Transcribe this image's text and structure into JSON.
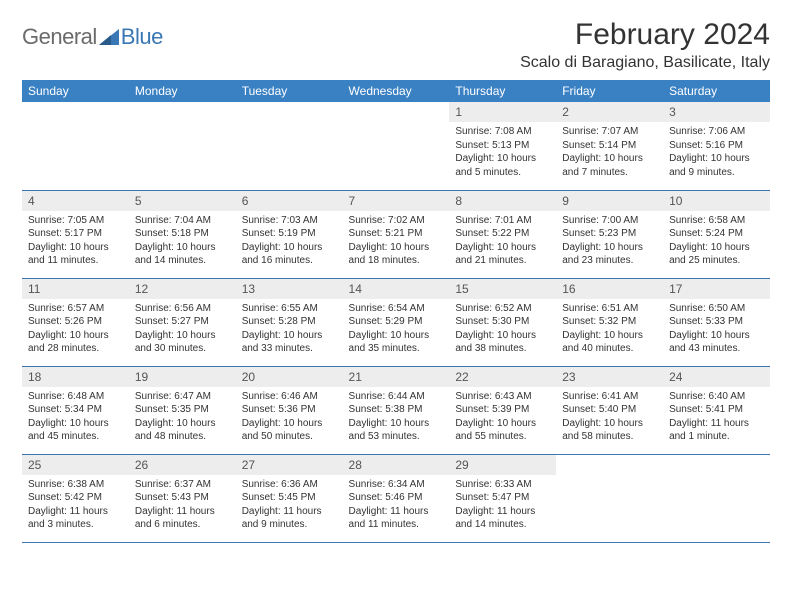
{
  "brand": {
    "general": "General",
    "blue": "Blue"
  },
  "title": "February 2024",
  "location": "Scalo di Baragiano, Basilicate, Italy",
  "colors": {
    "header_bg": "#3a81c4",
    "header_text": "#ffffff",
    "daynum_bg": "#ededed",
    "daynum_text": "#555555",
    "body_text": "#333333",
    "rule": "#3a78b5",
    "logo_gray": "#6b6b6b",
    "logo_blue": "#3a78b5"
  },
  "typography": {
    "title_fontsize": 30,
    "location_fontsize": 16,
    "header_fontsize": 12,
    "daynum_fontsize": 12,
    "cell_fontsize": 10
  },
  "weekdays": [
    "Sunday",
    "Monday",
    "Tuesday",
    "Wednesday",
    "Thursday",
    "Friday",
    "Saturday"
  ],
  "layout": {
    "first_weekday_index": 4,
    "days_in_month": 29
  },
  "days": {
    "1": {
      "sunrise": "7:08 AM",
      "sunset": "5:13 PM",
      "daylight": "10 hours and 5 minutes."
    },
    "2": {
      "sunrise": "7:07 AM",
      "sunset": "5:14 PM",
      "daylight": "10 hours and 7 minutes."
    },
    "3": {
      "sunrise": "7:06 AM",
      "sunset": "5:16 PM",
      "daylight": "10 hours and 9 minutes."
    },
    "4": {
      "sunrise": "7:05 AM",
      "sunset": "5:17 PM",
      "daylight": "10 hours and 11 minutes."
    },
    "5": {
      "sunrise": "7:04 AM",
      "sunset": "5:18 PM",
      "daylight": "10 hours and 14 minutes."
    },
    "6": {
      "sunrise": "7:03 AM",
      "sunset": "5:19 PM",
      "daylight": "10 hours and 16 minutes."
    },
    "7": {
      "sunrise": "7:02 AM",
      "sunset": "5:21 PM",
      "daylight": "10 hours and 18 minutes."
    },
    "8": {
      "sunrise": "7:01 AM",
      "sunset": "5:22 PM",
      "daylight": "10 hours and 21 minutes."
    },
    "9": {
      "sunrise": "7:00 AM",
      "sunset": "5:23 PM",
      "daylight": "10 hours and 23 minutes."
    },
    "10": {
      "sunrise": "6:58 AM",
      "sunset": "5:24 PM",
      "daylight": "10 hours and 25 minutes."
    },
    "11": {
      "sunrise": "6:57 AM",
      "sunset": "5:26 PM",
      "daylight": "10 hours and 28 minutes."
    },
    "12": {
      "sunrise": "6:56 AM",
      "sunset": "5:27 PM",
      "daylight": "10 hours and 30 minutes."
    },
    "13": {
      "sunrise": "6:55 AM",
      "sunset": "5:28 PM",
      "daylight": "10 hours and 33 minutes."
    },
    "14": {
      "sunrise": "6:54 AM",
      "sunset": "5:29 PM",
      "daylight": "10 hours and 35 minutes."
    },
    "15": {
      "sunrise": "6:52 AM",
      "sunset": "5:30 PM",
      "daylight": "10 hours and 38 minutes."
    },
    "16": {
      "sunrise": "6:51 AM",
      "sunset": "5:32 PM",
      "daylight": "10 hours and 40 minutes."
    },
    "17": {
      "sunrise": "6:50 AM",
      "sunset": "5:33 PM",
      "daylight": "10 hours and 43 minutes."
    },
    "18": {
      "sunrise": "6:48 AM",
      "sunset": "5:34 PM",
      "daylight": "10 hours and 45 minutes."
    },
    "19": {
      "sunrise": "6:47 AM",
      "sunset": "5:35 PM",
      "daylight": "10 hours and 48 minutes."
    },
    "20": {
      "sunrise": "6:46 AM",
      "sunset": "5:36 PM",
      "daylight": "10 hours and 50 minutes."
    },
    "21": {
      "sunrise": "6:44 AM",
      "sunset": "5:38 PM",
      "daylight": "10 hours and 53 minutes."
    },
    "22": {
      "sunrise": "6:43 AM",
      "sunset": "5:39 PM",
      "daylight": "10 hours and 55 minutes."
    },
    "23": {
      "sunrise": "6:41 AM",
      "sunset": "5:40 PM",
      "daylight": "10 hours and 58 minutes."
    },
    "24": {
      "sunrise": "6:40 AM",
      "sunset": "5:41 PM",
      "daylight": "11 hours and 1 minute."
    },
    "25": {
      "sunrise": "6:38 AM",
      "sunset": "5:42 PM",
      "daylight": "11 hours and 3 minutes."
    },
    "26": {
      "sunrise": "6:37 AM",
      "sunset": "5:43 PM",
      "daylight": "11 hours and 6 minutes."
    },
    "27": {
      "sunrise": "6:36 AM",
      "sunset": "5:45 PM",
      "daylight": "11 hours and 9 minutes."
    },
    "28": {
      "sunrise": "6:34 AM",
      "sunset": "5:46 PM",
      "daylight": "11 hours and 11 minutes."
    },
    "29": {
      "sunrise": "6:33 AM",
      "sunset": "5:47 PM",
      "daylight": "11 hours and 14 minutes."
    }
  }
}
